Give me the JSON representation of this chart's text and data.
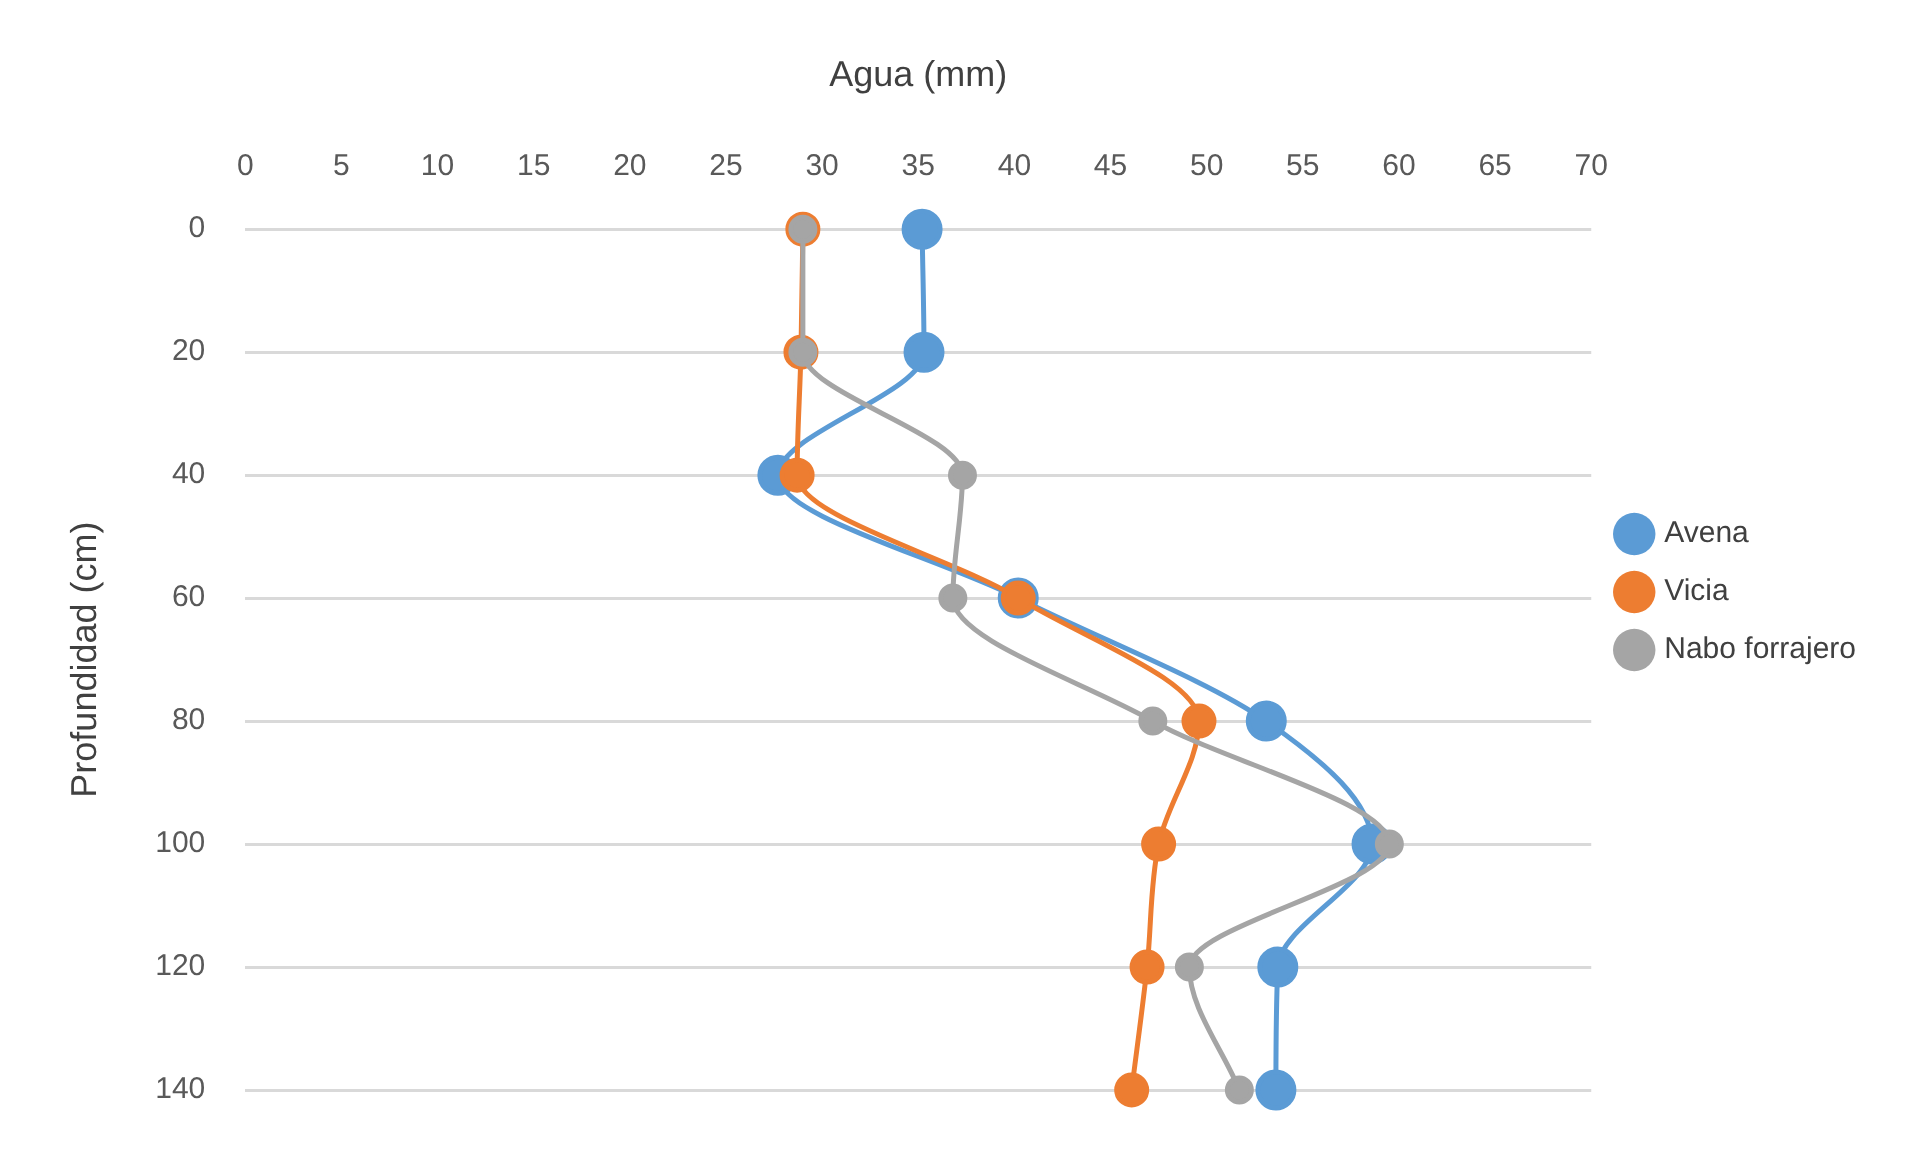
{
  "chart_data": {
    "type": "line",
    "xlabel": "Agua (mm)",
    "ylabel": "Profundidad (cm)",
    "xlim": [
      0,
      70
    ],
    "xticks": [
      0,
      5,
      10,
      15,
      20,
      25,
      30,
      35,
      40,
      45,
      50,
      55,
      60,
      65,
      70
    ],
    "ylim": [
      140,
      0
    ],
    "yticks": [
      0,
      20,
      40,
      60,
      80,
      100,
      120,
      140
    ],
    "grid": "y",
    "legend": "right",
    "marker": "circle",
    "line_style": "solid",
    "series": [
      {
        "name": "Avena",
        "color": "#5b9bd5",
        "x": [
          35.2,
          35.3,
          27.7,
          40.2,
          53.1,
          58.6,
          53.7,
          53.6
        ],
        "values": [
          0,
          20,
          40,
          60,
          80,
          100,
          120,
          140
        ]
      },
      {
        "name": "Vicia",
        "color": "#ed7d31",
        "x": [
          29.0,
          28.9,
          28.7,
          40.2,
          49.6,
          47.5,
          46.9,
          46.1
        ],
        "values": [
          0,
          20,
          40,
          60,
          80,
          100,
          120,
          140
        ]
      },
      {
        "name": "Nabo forrajero",
        "color": "#a5a5a5",
        "x": [
          29.0,
          29.0,
          37.3,
          36.8,
          47.2,
          59.5,
          49.1,
          51.7
        ],
        "values": [
          0,
          20,
          40,
          60,
          80,
          100,
          120,
          140
        ]
      }
    ]
  }
}
